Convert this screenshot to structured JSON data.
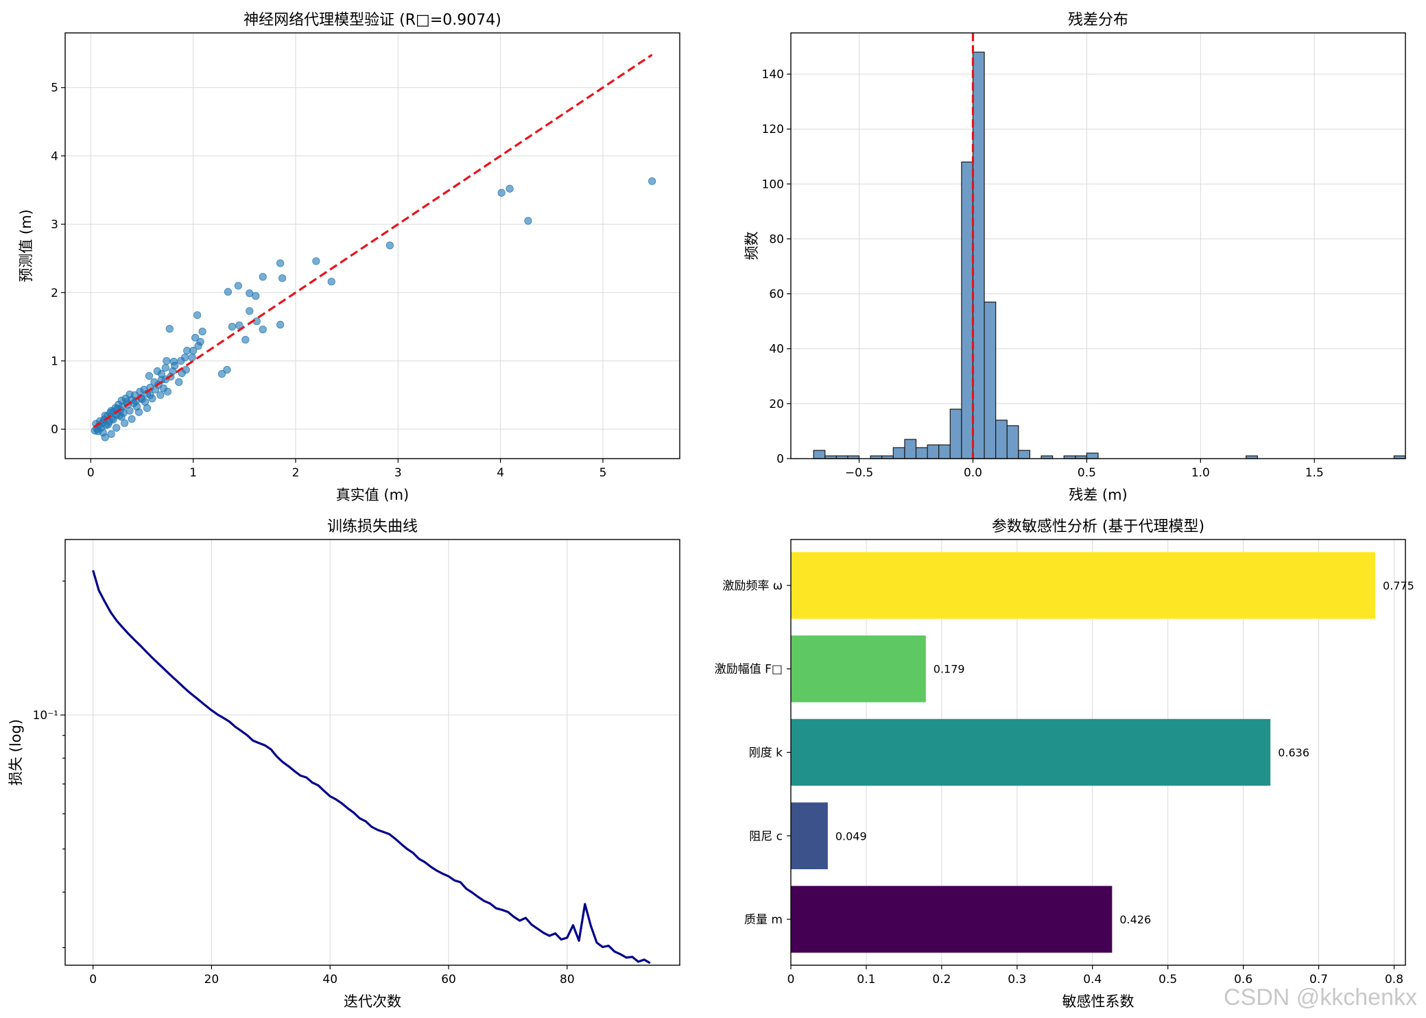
{
  "watermark": "CSDN @kkchenkx",
  "chart_data": [
    {
      "type": "scatter",
      "title": "神经网络代理模型验证 (R□=0.9074)",
      "xlabel": "真实值 (m)",
      "ylabel": "预测值 (m)",
      "xlim": [
        -0.25,
        5.75
      ],
      "ylim": [
        -0.43,
        5.8
      ],
      "xticks": [
        0,
        1,
        2,
        3,
        4,
        5
      ],
      "yticks": [
        0,
        1,
        2,
        3,
        4,
        5
      ],
      "grid": true,
      "point_color": "#1f77b4",
      "reference_line": {
        "from": [
          0.03,
          0.03
        ],
        "to": [
          5.48,
          5.48
        ],
        "color": "#e8141b",
        "style": "dashed"
      },
      "points": [
        [
          5.48,
          3.63
        ],
        [
          4.09,
          3.52
        ],
        [
          4.01,
          3.46
        ],
        [
          4.27,
          3.05
        ],
        [
          2.92,
          2.69
        ],
        [
          2.2,
          2.46
        ],
        [
          1.85,
          2.43
        ],
        [
          1.68,
          2.23
        ],
        [
          1.87,
          2.21
        ],
        [
          2.35,
          2.16
        ],
        [
          1.44,
          2.1
        ],
        [
          1.34,
          2.01
        ],
        [
          1.55,
          1.99
        ],
        [
          1.61,
          1.95
        ],
        [
          1.62,
          1.58
        ],
        [
          1.85,
          1.53
        ],
        [
          1.45,
          1.52
        ],
        [
          1.55,
          1.73
        ],
        [
          1.38,
          1.5
        ],
        [
          1.68,
          1.46
        ],
        [
          1.51,
          1.31
        ],
        [
          0.77,
          1.47
        ],
        [
          1.04,
          1.67
        ],
        [
          1.09,
          1.43
        ],
        [
          1.02,
          1.34
        ],
        [
          1.07,
          1.28
        ],
        [
          1.05,
          1.22
        ],
        [
          1.0,
          1.15
        ],
        [
          0.94,
          1.15
        ],
        [
          0.99,
          1.05
        ],
        [
          0.92,
          1.05
        ],
        [
          0.88,
          1.0
        ],
        [
          0.81,
          0.99
        ],
        [
          0.74,
          1.0
        ],
        [
          0.82,
          0.93
        ],
        [
          0.73,
          0.9
        ],
        [
          0.65,
          0.85
        ],
        [
          0.57,
          0.78
        ],
        [
          0.93,
          0.87
        ],
        [
          1.33,
          0.87
        ],
        [
          1.28,
          0.81
        ],
        [
          0.89,
          0.82
        ],
        [
          0.78,
          0.77
        ],
        [
          0.73,
          0.73
        ],
        [
          0.69,
          0.72
        ],
        [
          0.62,
          0.69
        ],
        [
          0.66,
          0.65
        ],
        [
          0.71,
          0.6
        ],
        [
          0.58,
          0.61
        ],
        [
          0.52,
          0.58
        ],
        [
          0.55,
          0.52
        ],
        [
          0.48,
          0.55
        ],
        [
          0.43,
          0.5
        ],
        [
          0.38,
          0.51
        ],
        [
          0.49,
          0.46
        ],
        [
          0.44,
          0.41
        ],
        [
          0.4,
          0.43
        ],
        [
          0.34,
          0.45
        ],
        [
          0.3,
          0.42
        ],
        [
          0.36,
          0.36
        ],
        [
          0.31,
          0.33
        ],
        [
          0.27,
          0.36
        ],
        [
          0.24,
          0.31
        ],
        [
          0.29,
          0.28
        ],
        [
          0.22,
          0.26
        ],
        [
          0.19,
          0.24
        ],
        [
          0.25,
          0.21
        ],
        [
          0.16,
          0.19
        ],
        [
          0.21,
          0.16
        ],
        [
          0.13,
          0.14
        ],
        [
          0.18,
          0.11
        ],
        [
          0.11,
          0.09
        ],
        [
          0.15,
          0.06
        ],
        [
          0.08,
          0.05
        ],
        [
          0.1,
          0.02
        ],
        [
          0.06,
          0.0
        ],
        [
          0.04,
          -0.02
        ],
        [
          0.12,
          -0.05
        ],
        [
          0.14,
          -0.12
        ],
        [
          0.2,
          -0.07
        ],
        [
          0.25,
          0.02
        ],
        [
          0.33,
          0.09
        ],
        [
          0.4,
          0.15
        ],
        [
          0.47,
          0.25
        ],
        [
          0.55,
          0.31
        ],
        [
          0.6,
          0.45
        ],
        [
          0.68,
          0.5
        ],
        [
          0.75,
          0.55
        ],
        [
          0.53,
          0.4
        ],
        [
          0.45,
          0.33
        ],
        [
          0.38,
          0.27
        ],
        [
          0.28,
          0.2
        ],
        [
          0.22,
          0.14
        ],
        [
          0.17,
          0.07
        ],
        [
          0.09,
          0.12
        ],
        [
          0.07,
          -0.03
        ],
        [
          0.05,
          0.08
        ],
        [
          0.26,
          0.3
        ],
        [
          0.32,
          0.24
        ],
        [
          0.42,
          0.38
        ],
        [
          0.5,
          0.44
        ],
        [
          0.58,
          0.5
        ],
        [
          0.63,
          0.58
        ],
        [
          0.8,
          0.85
        ],
        [
          0.86,
          0.69
        ],
        [
          0.69,
          0.81
        ],
        [
          0.2,
          0.27
        ],
        [
          0.14,
          0.2
        ],
        [
          0.35,
          0.4
        ],
        [
          0.3,
          0.18
        ]
      ]
    },
    {
      "type": "histogram",
      "title": "残差分布",
      "xlabel": "残差 (m)",
      "ylabel": "频数",
      "xlim": [
        -0.8,
        1.9
      ],
      "ylim": [
        0,
        155
      ],
      "xticks": [
        -0.5,
        0.0,
        0.5,
        1.0,
        1.5
      ],
      "xtick_labels": [
        "−0.5",
        "0.0",
        "0.5",
        "1.0",
        "1.5"
      ],
      "yticks": [
        0,
        20,
        40,
        60,
        80,
        100,
        120,
        140
      ],
      "grid": true,
      "bin_start": -0.7,
      "bin_width": 0.05,
      "counts": [
        3,
        1,
        1,
        1,
        0,
        1,
        1,
        4,
        7,
        4,
        5,
        5,
        18,
        108,
        148,
        57,
        14,
        12,
        3,
        0,
        1,
        0,
        1,
        1,
        2,
        0,
        0,
        0,
        0,
        0,
        0,
        0,
        0,
        0,
        0,
        0,
        0,
        0,
        1,
        0,
        0,
        0,
        0,
        0,
        0,
        0,
        0,
        0,
        0,
        0,
        0,
        1
      ],
      "bar_color": "#6f9cc6",
      "reference_line": {
        "x": 0.0,
        "color": "#e8141b",
        "style": "dashed"
      }
    },
    {
      "type": "line",
      "title": "训练损失曲线",
      "xlabel": "迭代次数",
      "ylabel": "损失 (log)",
      "xlim": [
        -4.7,
        99
      ],
      "log_scale_y": true,
      "ylim": [
        0.0274,
        0.248
      ],
      "xticks": [
        0,
        20,
        40,
        60,
        80
      ],
      "ytick_label": "10⁻¹",
      "ytick_value": 0.1,
      "grid": true,
      "line_color": "#00008b",
      "y": [
        0.2115,
        0.1905,
        0.1796,
        0.1701,
        0.1629,
        0.1573,
        0.1521,
        0.1475,
        0.1432,
        0.1387,
        0.1345,
        0.1306,
        0.1269,
        0.1232,
        0.1198,
        0.1164,
        0.1132,
        0.1104,
        0.1077,
        0.105,
        0.1025,
        0.1003,
        0.0985,
        0.0967,
        0.0941,
        0.0921,
        0.0901,
        0.0876,
        0.0865,
        0.0855,
        0.0838,
        0.0807,
        0.0784,
        0.0767,
        0.0748,
        0.0731,
        0.0724,
        0.0705,
        0.0695,
        0.0675,
        0.0657,
        0.0646,
        0.0633,
        0.0617,
        0.0603,
        0.0586,
        0.0577,
        0.0561,
        0.0552,
        0.0546,
        0.054,
        0.0527,
        0.0513,
        0.05,
        0.049,
        0.0475,
        0.0467,
        0.0456,
        0.0447,
        0.044,
        0.0434,
        0.0425,
        0.0421,
        0.0407,
        0.0399,
        0.039,
        0.0382,
        0.0377,
        0.0368,
        0.0365,
        0.0361,
        0.0352,
        0.0345,
        0.035,
        0.0338,
        0.0331,
        0.0324,
        0.0319,
        0.0323,
        0.0313,
        0.0316,
        0.0337,
        0.0311,
        0.0376,
        0.0336,
        0.0308,
        0.0301,
        0.0303,
        0.0294,
        0.029,
        0.0285,
        0.0286,
        0.0279,
        0.0282,
        0.0277
      ]
    },
    {
      "type": "barh",
      "title": "参数敏感性分析 (基于代理模型)",
      "xlabel": "敏感性系数",
      "xlim": [
        0,
        0.815
      ],
      "xticks": [
        0.0,
        0.1,
        0.2,
        0.3,
        0.4,
        0.5,
        0.6,
        0.7,
        0.8
      ],
      "grid": true,
      "categories": [
        "质量 m",
        "阻尼 c",
        "刚度 k",
        "激励幅值 F□",
        "激励频率 ω"
      ],
      "values": [
        0.426,
        0.049,
        0.636,
        0.179,
        0.775
      ],
      "value_labels": [
        "0.426",
        "0.049",
        "0.636",
        "0.179",
        "0.775"
      ],
      "colors": [
        "#440154",
        "#3b528b",
        "#21918c",
        "#5ec962",
        "#fde725"
      ]
    }
  ]
}
